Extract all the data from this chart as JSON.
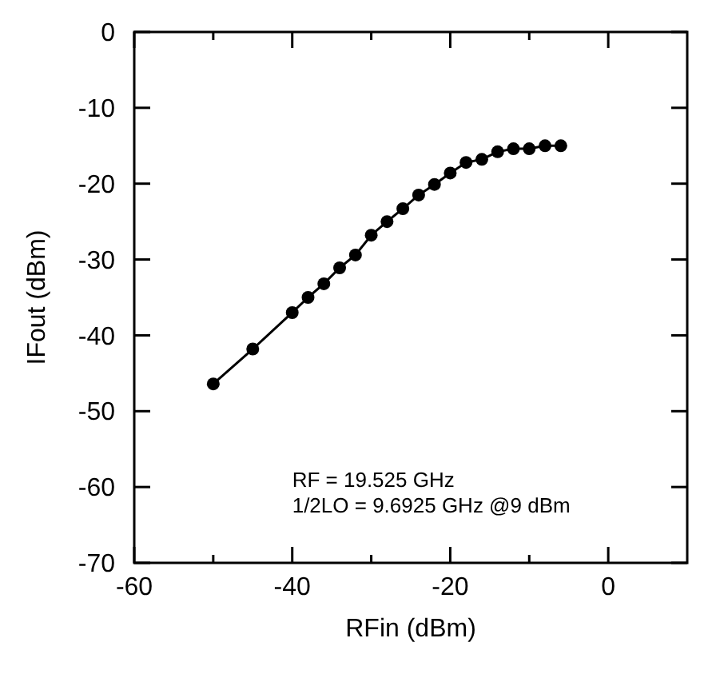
{
  "chart_data": {
    "type": "line",
    "xlabel": "RFin (dBm)",
    "ylabel": "IFout (dBm)",
    "x": [
      -50,
      -45,
      -40,
      -38,
      -36,
      -34,
      -32,
      -30,
      -28,
      -26,
      -24,
      -22,
      -20,
      -18,
      -16,
      -14,
      -12,
      -10,
      -8,
      -6
    ],
    "series": [
      {
        "color": "#000000",
        "values": [
          -46.4,
          -41.8,
          -37.0,
          -35.0,
          -33.2,
          -31.1,
          -29.4,
          -26.8,
          -25.0,
          -23.3,
          -21.5,
          -20.1,
          -18.6,
          -17.2,
          -16.8,
          -15.8,
          -15.4,
          -15.4,
          -15.0,
          -15.0
        ]
      }
    ],
    "xlim": [
      -60,
      10
    ],
    "ylim": [
      -70,
      0
    ],
    "xticks": [
      -60,
      {
        "value": -50,
        "label": null
      },
      -40,
      {
        "value": -30,
        "label": null
      },
      -20,
      {
        "value": -10,
        "label": null
      },
      0
    ],
    "yticks": [
      -70,
      -60,
      -50,
      -40,
      -30,
      -20,
      -10,
      0
    ],
    "marker": "circle",
    "line_style": "solid",
    "grid": false,
    "annotations": [
      "RF = 19.525 GHz",
      "1/2LO = 9.6925 GHz @9 dBm"
    ]
  }
}
